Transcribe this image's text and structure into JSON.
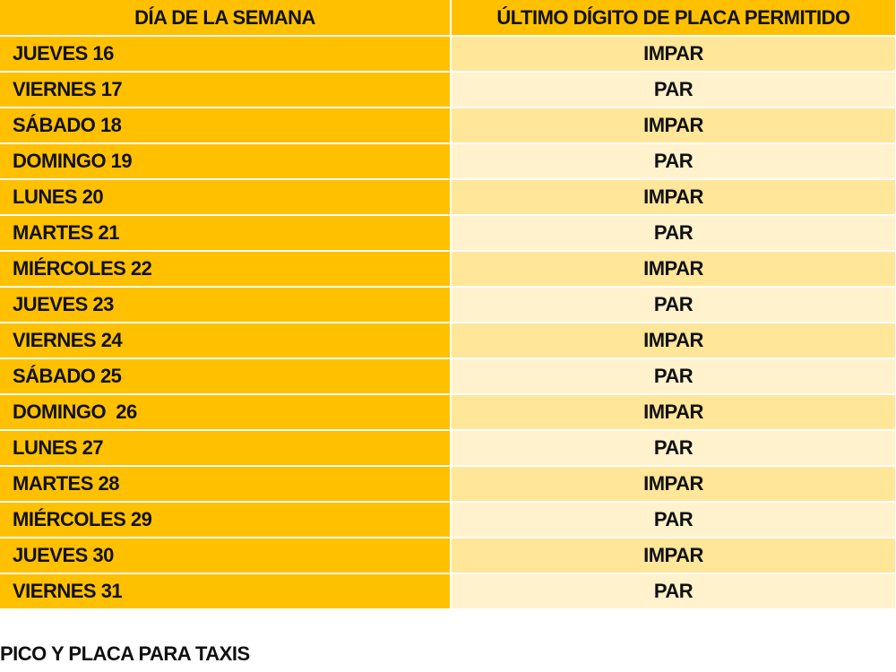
{
  "table": {
    "headers": {
      "day": "DÍA DE LA SEMANA",
      "digit": "ÚLTIMO DÍGITO DE PLACA PERMITIDO"
    },
    "rows": [
      {
        "day": "JUEVES 16",
        "digit": "IMPAR"
      },
      {
        "day": "VIERNES 17",
        "digit": "PAR"
      },
      {
        "day": "SÁBADO 18",
        "digit": "IMPAR"
      },
      {
        "day": "DOMINGO 19",
        "digit": "PAR"
      },
      {
        "day": "LUNES 20",
        "digit": "IMPAR"
      },
      {
        "day": "MARTES 21",
        "digit": "PAR"
      },
      {
        "day": "MIÉRCOLES 22",
        "digit": "IMPAR"
      },
      {
        "day": "JUEVES 23",
        "digit": "PAR"
      },
      {
        "day": "VIERNES 24",
        "digit": "IMPAR"
      },
      {
        "day": "SÁBADO 25",
        "digit": "PAR"
      },
      {
        "day": "DOMINGO  26",
        "digit": "IMPAR"
      },
      {
        "day": "LUNES 27",
        "digit": "PAR"
      },
      {
        "day": "MARTES 28",
        "digit": "IMPAR"
      },
      {
        "day": "MIÉRCOLES 29",
        "digit": "PAR"
      },
      {
        "day": "JUEVES 30",
        "digit": "IMPAR"
      },
      {
        "day": "VIERNES 31",
        "digit": "PAR"
      }
    ]
  },
  "footer": {
    "title": "PICO Y PLACA PARA TAXIS"
  },
  "colors": {
    "header_bg": "#FFC000",
    "day_column_bg": "#FFC000",
    "digit_band_dark": "#FFE699",
    "digit_band_light": "#FFF2CC",
    "text": "#111111"
  }
}
